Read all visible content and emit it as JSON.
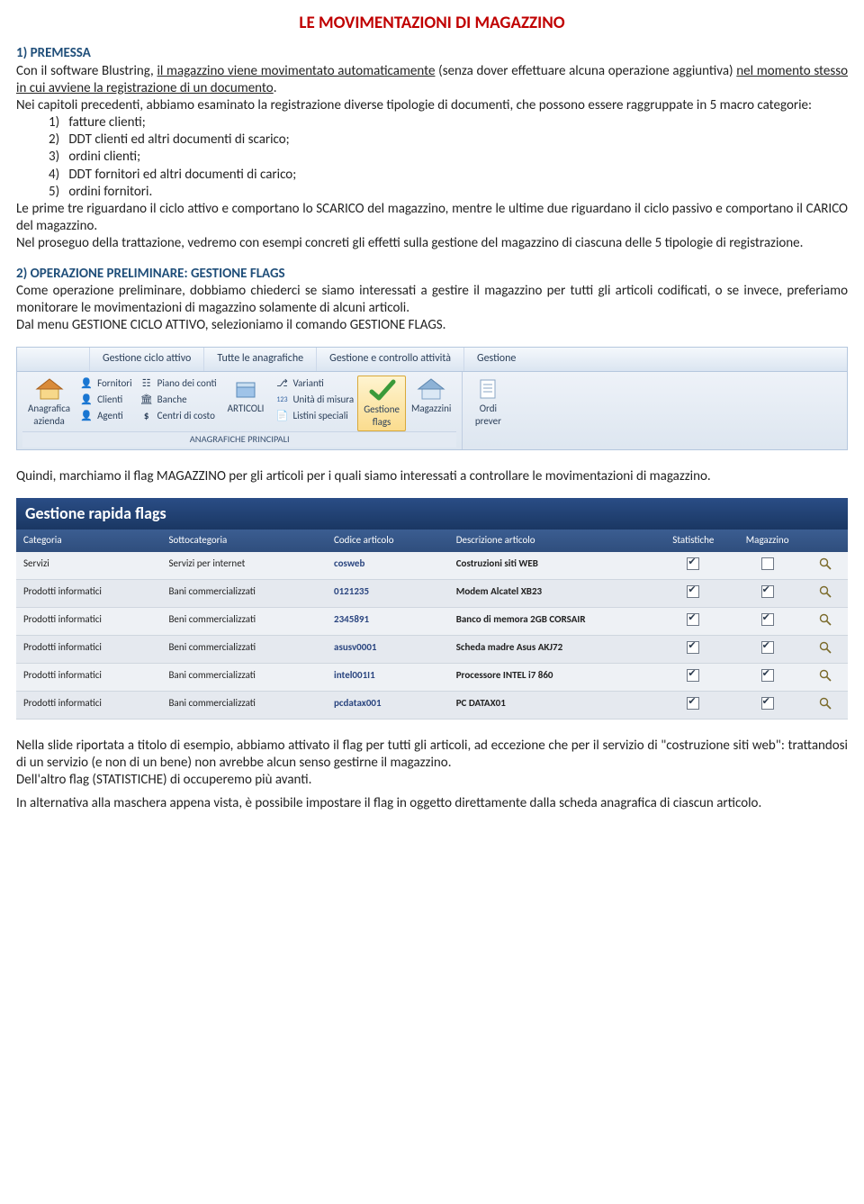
{
  "title": "LE MOVIMENTAZIONI DI MAGAZZINO",
  "colors": {
    "title": "#c00000",
    "heading": "#1f4e79"
  },
  "section1": {
    "heading": "1) PREMESSA",
    "p1a": "Con il software Blustring, ",
    "p1u": "il magazzino viene movimentato automaticamente",
    "p1b": " (senza dover effettuare alcuna operazione aggiuntiva) ",
    "p1u2": "nel momento stesso in cui avviene la registrazione di un documento",
    "p1c": ".",
    "p2": "Nei capitoli precedenti, abbiamo esaminato la registrazione diverse tipologie di documenti, che possono essere raggruppate in 5 macro categorie:",
    "list": [
      "1)   fatture clienti;",
      "2)   DDT clienti ed altri documenti di scarico;",
      "3)   ordini clienti;",
      "4)   DDT fornitori ed altri documenti di carico;",
      "5)   ordini fornitori."
    ],
    "p3": "Le prime tre riguardano il ciclo attivo e comportano lo SCARICO del magazzino, mentre le ultime due riguardano il ciclo passivo e comportano il CARICO del magazzino.",
    "p4": "Nel proseguo della trattazione, vedremo con esempi concreti gli effetti sulla gestione del magazzino di ciascuna delle 5 tipologie di registrazione."
  },
  "section2": {
    "heading": "2) OPERAZIONE PRELIMINARE: GESTIONE FLAGS",
    "p1": "Come operazione preliminare, dobbiamo chiederci se siamo interessati a gestire il magazzino per tutti gli articoli codificati, o se invece, preferiamo monitorare le movimentazioni di magazzino solamente di alcuni articoli.",
    "p2": "Dal menu GESTIONE CICLO ATTIVO, selezioniamo il comando GESTIONE FLAGS."
  },
  "ribbon": {
    "tabs": [
      "Gestione ciclo attivo",
      "Tutte le anagrafiche",
      "Gestione e controllo attività",
      "Gestione"
    ],
    "big1": {
      "line1": "Anagrafica",
      "line2": "azienda"
    },
    "smallsA": [
      "Fornitori",
      "Clienti",
      "Agenti"
    ],
    "smallsB": [
      "Piano dei conti",
      "Banche",
      "Centri di costo"
    ],
    "mid": {
      "label": "ARTICOLI"
    },
    "smallsC": [
      "Varianti",
      "Unità di misura",
      "Listini speciali"
    ],
    "sel": {
      "line1": "Gestione",
      "line2": "flags"
    },
    "big2": {
      "label": "Magazzini"
    },
    "big3": {
      "line1": "Ordi",
      "line2": "prever"
    },
    "footer": "ANAGRAFICHE PRINCIPALI"
  },
  "section3": {
    "p1": "Quindi, marchiamo il flag MAGAZZINO per gli articoli per i quali siamo interessati a controllare le movimentazioni di magazzino."
  },
  "grid": {
    "title": "Gestione rapida flags",
    "headers": {
      "cat": "Categoria",
      "sub": "Sottocategoria",
      "code": "Codice articolo",
      "desc": "Descrizione articolo",
      "stat": "Statistiche",
      "mag": "Magazzino"
    },
    "rows": [
      {
        "cat": "Servizi",
        "sub": "Servizi per internet",
        "code": "cosweb",
        "desc": "Costruzioni siti WEB",
        "stat": true,
        "mag": false
      },
      {
        "cat": "Prodotti informatici",
        "sub": "Bani commercializzati",
        "code": "0121235",
        "desc": "Modem Alcatel XB23",
        "stat": true,
        "mag": true
      },
      {
        "cat": "Prodotti informatici",
        "sub": "Beni commercializzati",
        "code": "2345891",
        "desc": "Banco di memora 2GB CORSAIR",
        "stat": true,
        "mag": true
      },
      {
        "cat": "Prodotti informatici",
        "sub": "Beni commercializzati",
        "code": "asusv0001",
        "desc": "Scheda madre Asus AKJ72",
        "stat": true,
        "mag": true
      },
      {
        "cat": "Prodotti informatici",
        "sub": "Bani commercializzati",
        "code": "intel001I1",
        "desc": "Processore INTEL i7 860",
        "stat": true,
        "mag": true
      },
      {
        "cat": "Prodotti informatici",
        "sub": "Bani commercializzati",
        "code": "pcdatax001",
        "desc": "PC DATAX01",
        "stat": true,
        "mag": true
      }
    ]
  },
  "section4": {
    "p1": "Nella slide riportata a titolo di esempio, abbiamo attivato il flag per tutti gli articoli, ad eccezione che per il servizio di \"costruzione siti web\": trattandosi di un servizio (e non di un bene) non avrebbe alcun senso gestirne il magazzino.",
    "p2": "Dell'altro flag (STATISTICHE) di occuperemo più avanti.",
    "p3": "In alternativa alla maschera appena vista, è possibile impostare il flag in oggetto direttamente dalla scheda anagrafica di ciascun articolo."
  }
}
